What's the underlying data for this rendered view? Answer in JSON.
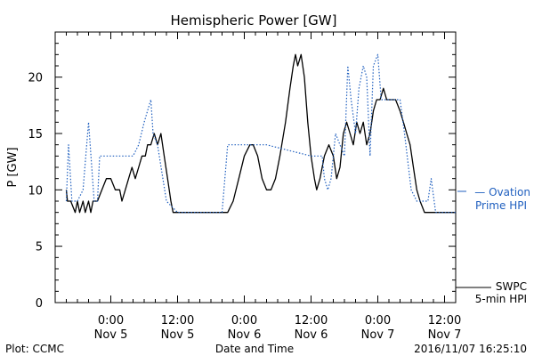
{
  "chart_data": {
    "type": "line",
    "title": "Hemispheric Power [GW]",
    "xlabel": "Date and Time",
    "ylabel": "P [GW]",
    "ylim": [
      0,
      24
    ],
    "y_ticks": [
      0,
      5,
      10,
      15,
      20
    ],
    "x_hours_range": [
      -5,
      31
    ],
    "x_ticks": [
      {
        "hour": 0,
        "line1": "0:00",
        "line2": "Nov 5"
      },
      {
        "hour": 6,
        "line1": "12:00",
        "line2": "Nov 5"
      },
      {
        "hour": 12,
        "line1": "0:00",
        "line2": "Nov 6"
      },
      {
        "hour": 18,
        "line1": "12:00",
        "line2": "Nov 6"
      },
      {
        "hour": 24,
        "line1": "0:00",
        "line2": "Nov 7"
      },
      {
        "hour": 30,
        "line1": "12:00",
        "line2": "Nov 7"
      }
    ],
    "grid": false,
    "legend_placement": "right",
    "series": [
      {
        "name": "SWPC 5-min HPI",
        "label_line1": "SWPC",
        "label_line2": "5-min HPI",
        "color": "#000000",
        "style": "solid",
        "points": [
          [
            -4.0,
            10
          ],
          [
            -3.9,
            9
          ],
          [
            -3.6,
            9
          ],
          [
            -3.2,
            8
          ],
          [
            -3.0,
            9
          ],
          [
            -2.8,
            8
          ],
          [
            -2.5,
            9
          ],
          [
            -2.3,
            8
          ],
          [
            -2.0,
            9
          ],
          [
            -1.8,
            8
          ],
          [
            -1.6,
            9
          ],
          [
            -1.2,
            9
          ],
          [
            -0.8,
            10
          ],
          [
            -0.4,
            11
          ],
          [
            0.0,
            11
          ],
          [
            0.4,
            10
          ],
          [
            0.8,
            10
          ],
          [
            1.0,
            9
          ],
          [
            1.3,
            10
          ],
          [
            1.6,
            11
          ],
          [
            1.9,
            12
          ],
          [
            2.2,
            11
          ],
          [
            2.5,
            12
          ],
          [
            2.8,
            13
          ],
          [
            3.1,
            13
          ],
          [
            3.3,
            14
          ],
          [
            3.6,
            14
          ],
          [
            3.9,
            15
          ],
          [
            4.2,
            14
          ],
          [
            4.5,
            15
          ],
          [
            4.8,
            13
          ],
          [
            5.1,
            11
          ],
          [
            5.4,
            9
          ],
          [
            5.6,
            8
          ],
          [
            6.0,
            8
          ],
          [
            7.0,
            8
          ],
          [
            9.0,
            8
          ],
          [
            10.5,
            8
          ],
          [
            11.0,
            9
          ],
          [
            11.5,
            11
          ],
          [
            12.0,
            13
          ],
          [
            12.5,
            14
          ],
          [
            12.8,
            14
          ],
          [
            13.2,
            13
          ],
          [
            13.6,
            11
          ],
          [
            14.0,
            10
          ],
          [
            14.4,
            10
          ],
          [
            14.8,
            11
          ],
          [
            15.2,
            13
          ],
          [
            15.7,
            16
          ],
          [
            16.1,
            19
          ],
          [
            16.4,
            21
          ],
          [
            16.6,
            22
          ],
          [
            16.8,
            21
          ],
          [
            17.1,
            22
          ],
          [
            17.4,
            20
          ],
          [
            17.7,
            16
          ],
          [
            18.0,
            13
          ],
          [
            18.3,
            11
          ],
          [
            18.5,
            10
          ],
          [
            18.8,
            11
          ],
          [
            19.2,
            13
          ],
          [
            19.6,
            14
          ],
          [
            20.0,
            13
          ],
          [
            20.3,
            11
          ],
          [
            20.6,
            12
          ],
          [
            20.9,
            15
          ],
          [
            21.2,
            16
          ],
          [
            21.5,
            15
          ],
          [
            21.8,
            14
          ],
          [
            22.1,
            16
          ],
          [
            22.4,
            15
          ],
          [
            22.7,
            16
          ],
          [
            23.0,
            14
          ],
          [
            23.3,
            15
          ],
          [
            23.6,
            17
          ],
          [
            23.9,
            18
          ],
          [
            24.2,
            18
          ],
          [
            24.5,
            19
          ],
          [
            24.8,
            18
          ],
          [
            25.2,
            18
          ],
          [
            25.6,
            18
          ],
          [
            26.0,
            17
          ],
          [
            26.3,
            16
          ],
          [
            26.6,
            15
          ],
          [
            26.9,
            14
          ],
          [
            27.2,
            12
          ],
          [
            27.5,
            10
          ],
          [
            27.8,
            9
          ],
          [
            28.2,
            8
          ],
          [
            29.0,
            8
          ],
          [
            30.0,
            8
          ],
          [
            31.0,
            8
          ]
        ]
      },
      {
        "name": "Ovation Prime HPI",
        "label_line1": "— Ovation",
        "label_line2": "Prime HPI",
        "color": "#1f5fbf",
        "style": "dotted",
        "points": [
          [
            -4.0,
            9
          ],
          [
            -3.8,
            14
          ],
          [
            -3.5,
            9
          ],
          [
            -3.0,
            9
          ],
          [
            -2.5,
            10
          ],
          [
            -2.0,
            16
          ],
          [
            -1.5,
            9
          ],
          [
            -1.2,
            9
          ],
          [
            -1.0,
            13
          ],
          [
            -0.5,
            13
          ],
          [
            0.0,
            13
          ],
          [
            1.0,
            13
          ],
          [
            2.0,
            13
          ],
          [
            2.5,
            14
          ],
          [
            3.0,
            16
          ],
          [
            3.6,
            18
          ],
          [
            3.8,
            15
          ],
          [
            4.2,
            14
          ],
          [
            5.0,
            9
          ],
          [
            6.0,
            8
          ],
          [
            8.0,
            8
          ],
          [
            10.0,
            8
          ],
          [
            10.5,
            14
          ],
          [
            12.0,
            14
          ],
          [
            13.0,
            14
          ],
          [
            14.0,
            14
          ],
          [
            18.0,
            13
          ],
          [
            19.0,
            13
          ],
          [
            19.2,
            11
          ],
          [
            19.5,
            10
          ],
          [
            19.8,
            11
          ],
          [
            20.2,
            15
          ],
          [
            20.6,
            14
          ],
          [
            21.0,
            13
          ],
          [
            21.3,
            21
          ],
          [
            21.6,
            18
          ],
          [
            22.0,
            15
          ],
          [
            22.3,
            19
          ],
          [
            22.7,
            21
          ],
          [
            23.0,
            20
          ],
          [
            23.3,
            13
          ],
          [
            23.6,
            21
          ],
          [
            24.0,
            22
          ],
          [
            24.3,
            18
          ],
          [
            25.0,
            18
          ],
          [
            26.0,
            18
          ],
          [
            26.4,
            15
          ],
          [
            27.0,
            10
          ],
          [
            27.5,
            9
          ],
          [
            28.5,
            9
          ],
          [
            28.8,
            11
          ],
          [
            29.2,
            8
          ],
          [
            30.0,
            8
          ],
          [
            31.0,
            8
          ]
        ]
      }
    ]
  },
  "footer": {
    "left": "Plot: CCMC",
    "right": "2016/11/07 16:25:10"
  }
}
